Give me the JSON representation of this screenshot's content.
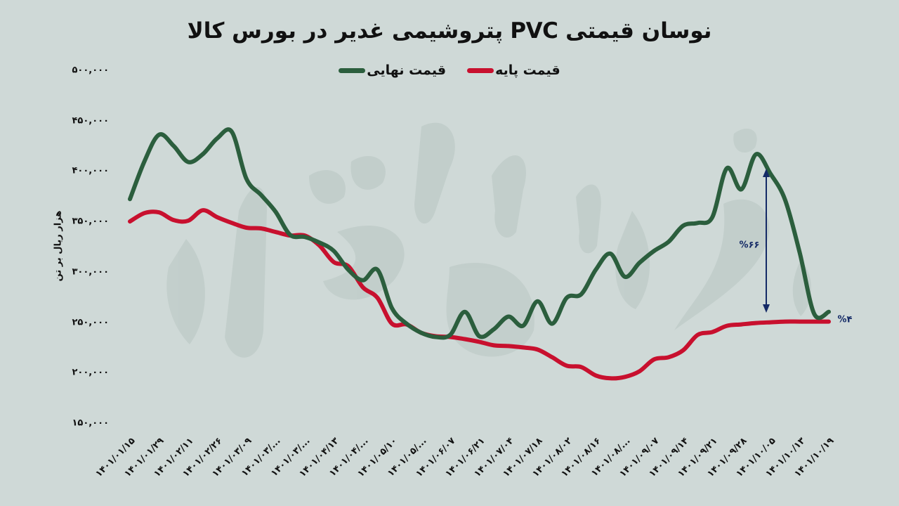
{
  "header": {
    "title": "نوسان قیمتی PVC پتروشیمی غدیر در بورس کالا"
  },
  "legend": [
    {
      "label": "قیمت پایه",
      "color": "#c8102e"
    },
    {
      "label": "قیمت نهایی",
      "color": "#2b5e3d"
    }
  ],
  "annotations": {
    "gap_peak": "%۶۶",
    "gap_end": "%۴",
    "arrow_color": "#142a66"
  },
  "chart_data": {
    "type": "line",
    "title": "نوسان قیمتی PVC پتروشیمی غدیر در بورس کالا",
    "xlabel": "",
    "ylabel": "هزار ریال بر تن",
    "ylim": [
      150000,
      500000
    ],
    "yticks": [
      500000,
      450000,
      400000,
      350000,
      300000,
      250000,
      200000,
      150000
    ],
    "ytick_labels": [
      "۵۰۰,۰۰۰",
      "۴۵۰,۰۰۰",
      "۴۰۰,۰۰۰",
      "۳۵۰,۰۰۰",
      "۳۰۰,۰۰۰",
      "۲۵۰,۰۰۰",
      "۲۰۰,۰۰۰",
      "۱۵۰,۰۰۰"
    ],
    "grid": false,
    "legend_position": "top",
    "categories": [
      "۱۴۰۱/۰۱/۱۵",
      "۱۴۰۱/۰۱/۲۹",
      "۱۴۰۱/۰۲/۱۱",
      "۱۴۰۱/۰۲/۲۶",
      "۱۴۰۱/۰۳/۰۹",
      "۱۴۰۱/۰۳/...",
      "۱۴۰۱/۰۳/...",
      "۱۴۰۱/۰۴/۱۳",
      "۱۴۰۱/۰۴/...",
      "۱۴۰۱/۰۵/۱۰",
      "۱۴۰۱/۰۵/...",
      "۱۴۰۱/۰۶/۰۷",
      "۱۴۰۱/۰۶/۲۱",
      "۱۴۰۱/۰۷/۰۴",
      "۱۴۰۱/۰۷/۱۸",
      "۱۴۰۱/۰۸/۰۲",
      "۱۴۰۱/۰۸/۱۶",
      "۱۴۰۱/۰۸/...",
      "۱۴۰۱/۰۹/۰۷",
      "۱۴۰۱/۰۹/۱۴",
      "۱۴۰۱/۰۹/۲۱",
      "۱۴۰۱/۰۹/۲۸",
      "۱۴۰۱/۱۰/۰۵",
      "۱۴۰۱/۱۰/۱۳",
      "۱۴۰۱/۱۰/۱۹"
    ],
    "points_per_category_interval": 2,
    "series": [
      {
        "name": "قیمت نهایی",
        "color": "#2b5e3d",
        "values": [
          372200,
          409700,
          436100,
          425000,
          409000,
          416700,
          432600,
          438900,
          392400,
          376400,
          359700,
          336800,
          334700,
          329200,
          320800,
          302100,
          291700,
          302100,
          263900,
          248600,
          239600,
          235400,
          237500,
          260400,
          236100,
          243100,
          255600,
          246500,
          270800,
          248600,
          274300,
          277800,
          302100,
          318100,
          295100,
          309000,
          320800,
          329900,
          345800,
          348600,
          354200,
          402800,
          381900,
          416700,
          397200,
          371500,
          319400,
          258300,
          260400
        ]
      },
      {
        "name": "قیمت پایه",
        "color": "#c8102e",
        "values": [
          350000,
          358300,
          359000,
          351400,
          350700,
          361100,
          354200,
          348600,
          343800,
          343100,
          339600,
          336100,
          336100,
          326400,
          309700,
          305600,
          284700,
          274300,
          248600,
          247900,
          239600,
          236100,
          235400,
          233300,
          230600,
          227100,
          226400,
          225000,
          222900,
          215300,
          206900,
          205600,
          197200,
          194400,
          195800,
          201400,
          213200,
          215300,
          222200,
          237500,
          240300,
          246500,
          247900,
          249300,
          250000,
          250700,
          250700,
          250700,
          250700
        ]
      }
    ]
  }
}
